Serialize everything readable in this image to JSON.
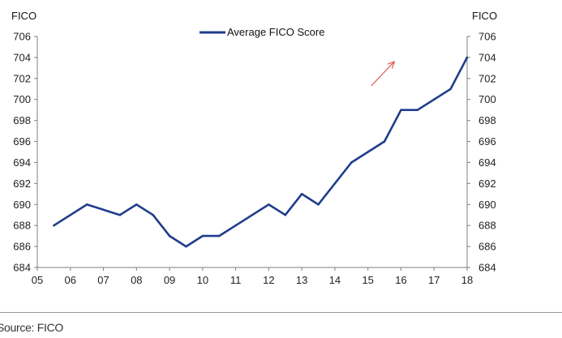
{
  "chart_data": {
    "type": "line",
    "left_axis_title": "FICO",
    "right_axis_title": "FICO",
    "x_tick_labels": [
      "05",
      "06",
      "07",
      "08",
      "09",
      "10",
      "11",
      "12",
      "13",
      "14",
      "15",
      "16",
      "17",
      "18"
    ],
    "x_min": 2005,
    "x_max": 2018,
    "y_ticks": [
      684,
      686,
      688,
      690,
      692,
      694,
      696,
      698,
      700,
      702,
      704,
      706
    ],
    "ylim": [
      684,
      706
    ],
    "legend": {
      "label": "Average FICO Score",
      "position": "top-center"
    },
    "grid": false,
    "series": [
      {
        "name": "Average FICO Score",
        "color": "#1f3d8c",
        "points": [
          [
            2005.5,
            688
          ],
          [
            2006.5,
            690
          ],
          [
            2007.5,
            689
          ],
          [
            2008.0,
            690
          ],
          [
            2008.5,
            689
          ],
          [
            2009.0,
            687
          ],
          [
            2009.5,
            686
          ],
          [
            2010.0,
            687
          ],
          [
            2010.5,
            687
          ],
          [
            2011.0,
            688
          ],
          [
            2012.0,
            690
          ],
          [
            2012.5,
            689
          ],
          [
            2013.0,
            691
          ],
          [
            2013.5,
            690
          ],
          [
            2014.5,
            694
          ],
          [
            2015.5,
            696
          ],
          [
            2016.0,
            699
          ],
          [
            2016.5,
            699
          ],
          [
            2017.5,
            701
          ],
          [
            2018.0,
            704
          ]
        ]
      }
    ],
    "annotation": {
      "type": "arrow",
      "color": "#e05a4e",
      "from": [
        2015.1,
        701.3
      ],
      "to": [
        2015.8,
        703.6
      ]
    }
  },
  "footer": {
    "source": "Source: FICO"
  }
}
